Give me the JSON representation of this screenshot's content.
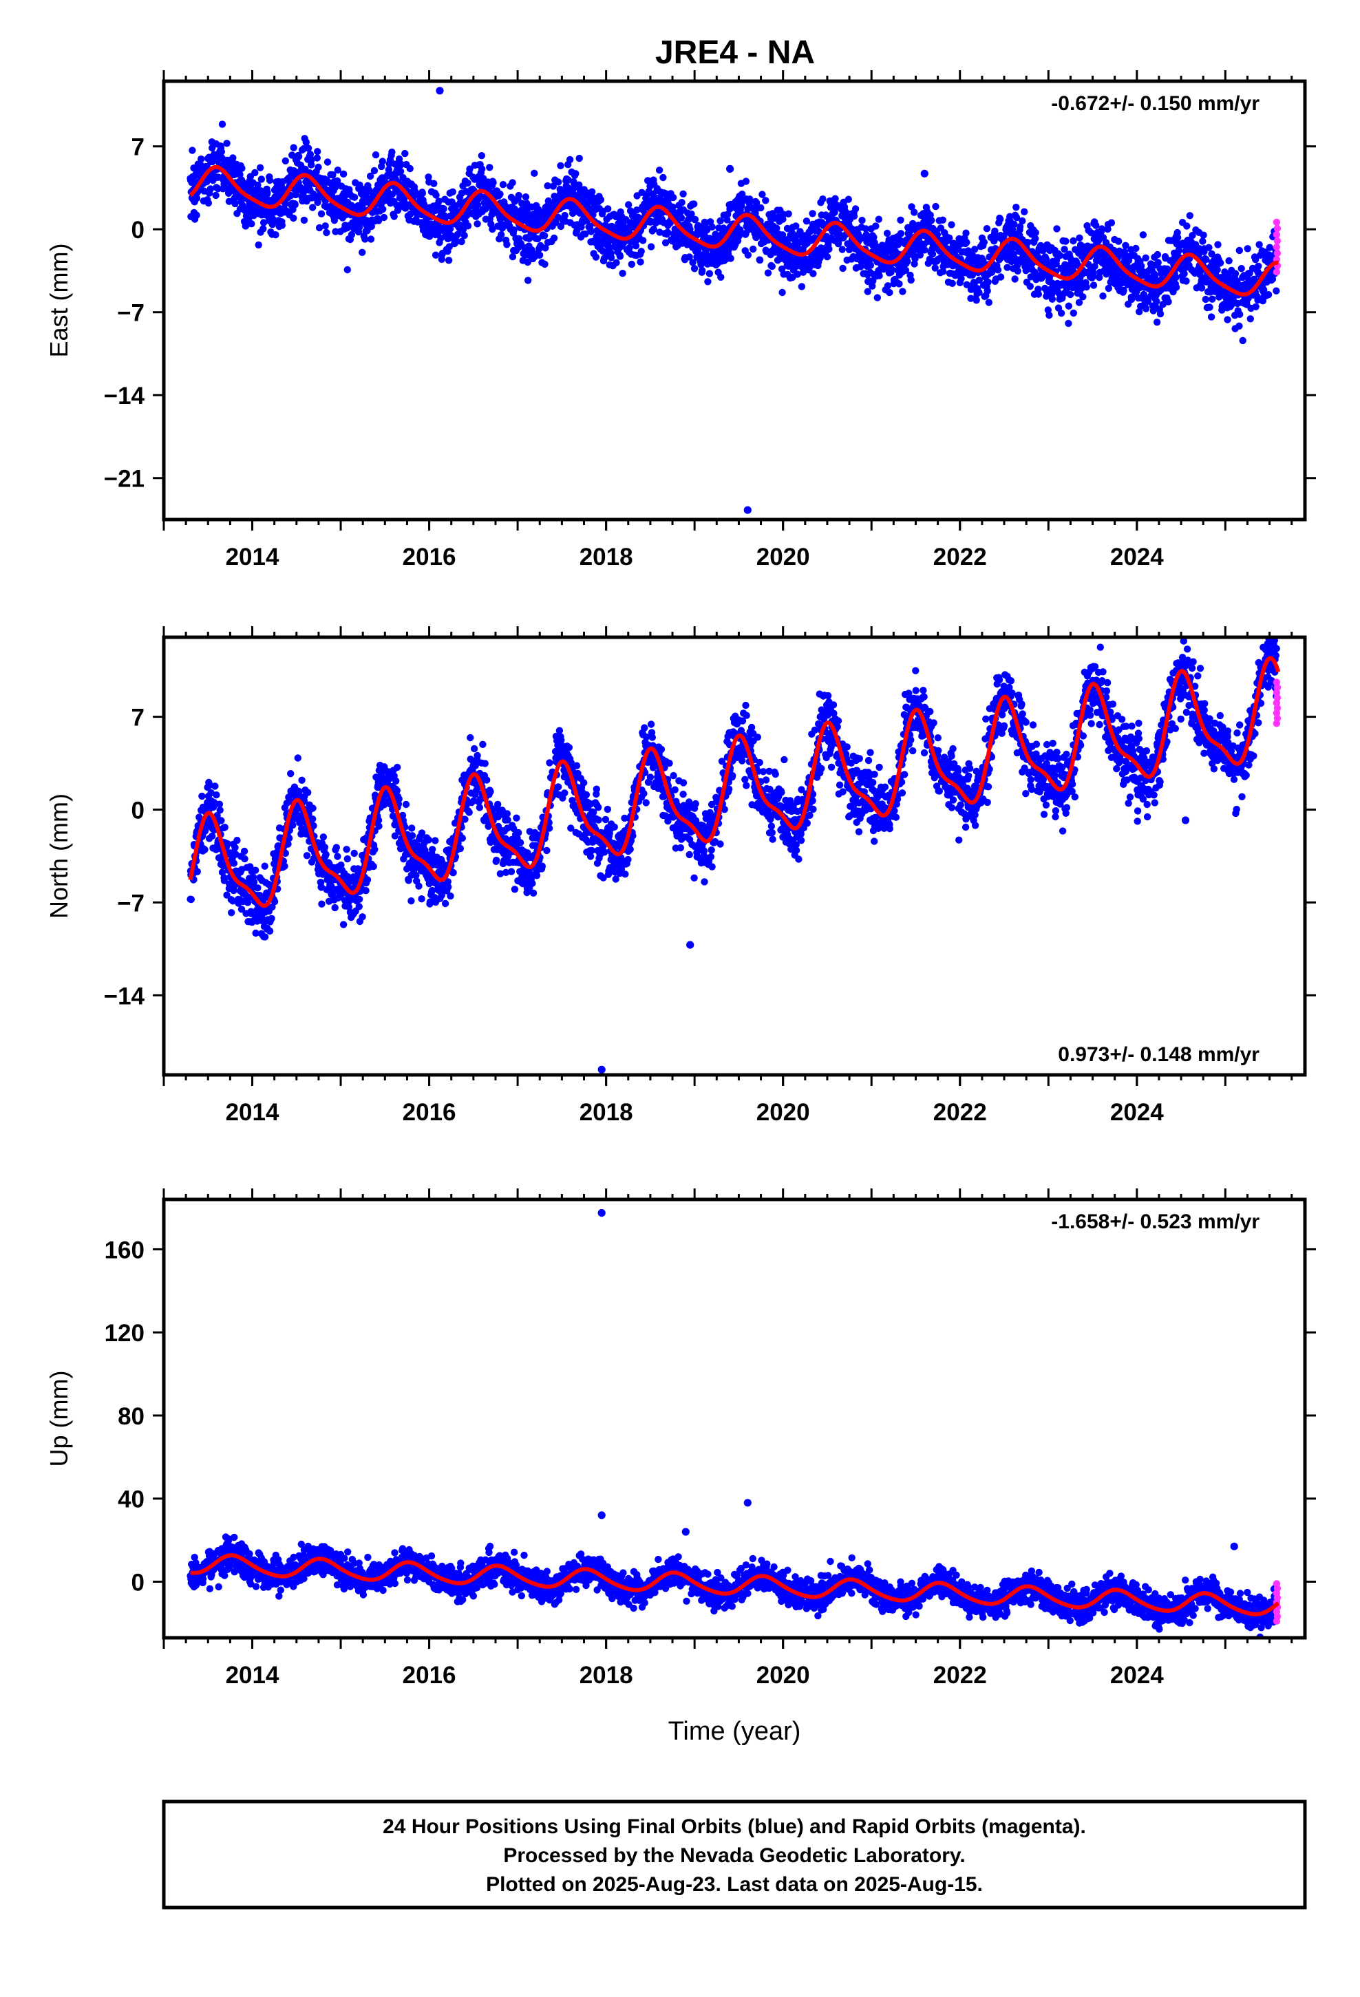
{
  "title": "JRE4 - NA",
  "colors": {
    "final": "#0000ff",
    "rapid": "#ff33ff",
    "model": "#ff0000",
    "frame": "#000000"
  },
  "chart_data": [
    {
      "type": "scatter",
      "component": "east",
      "ylabel": "East (mm)",
      "xlabel": "",
      "rate": "-0.672+/- 0.150 mm/yr",
      "rate_placement": "top-right",
      "xlim": [
        2013.0,
        2025.9
      ],
      "ylim": [
        -24.5,
        12.5
      ],
      "xticks": [
        2014,
        2016,
        2018,
        2020,
        2022,
        2024
      ],
      "yticks": [
        7,
        0,
        -7,
        -14,
        -21
      ],
      "ytick_labels": [
        "7",
        "0",
        "−7",
        "−14",
        "−21"
      ],
      "model": {
        "offset": 3.8,
        "trend": -0.672,
        "annual_amplitude": 1.4,
        "annual_peak_month": 8,
        "semiannual_amplitude": 0.3
      },
      "scatter_sd": 1.3,
      "outliers": [
        [
          2016.12,
          11.7
        ],
        [
          2019.4,
          5.1
        ],
        [
          2019.6,
          -23.7
        ],
        [
          2021.6,
          4.7
        ]
      ],
      "rapid_range": [
        -3.6,
        0.6
      ]
    },
    {
      "type": "scatter",
      "component": "north",
      "ylabel": "North (mm)",
      "xlabel": "",
      "rate": "0.973+/- 0.148 mm/yr",
      "rate_placement": "bottom-right",
      "xlim": [
        2013.0,
        2025.9
      ],
      "ylim": [
        -20.0,
        13.0
      ],
      "xticks": [
        2014,
        2016,
        2018,
        2020,
        2022,
        2024
      ],
      "yticks": [
        7,
        0,
        -7,
        -14
      ],
      "ytick_labels": [
        "7",
        "0",
        "−7",
        "−14"
      ],
      "model": {
        "offset": -4.8,
        "trend": 0.973,
        "annual_amplitude": 3.4,
        "annual_peak_month": 7,
        "semiannual_amplitude": 1.1
      },
      "scatter_sd": 1.2,
      "outliers": [
        [
          2017.95,
          -19.6
        ],
        [
          2018.95,
          -10.2
        ],
        [
          2024.55,
          -0.8
        ]
      ],
      "rapid_range": [
        6.5,
        9.6
      ]
    },
    {
      "type": "scatter",
      "component": "up",
      "ylabel": "Up (mm)",
      "xlabel": "Time (year)",
      "rate": "-1.658+/- 0.523 mm/yr",
      "rate_placement": "top-right",
      "xlim": [
        2013.0,
        2025.9
      ],
      "ylim": [
        -27.0,
        184.0
      ],
      "xticks": [
        2014,
        2016,
        2018,
        2020,
        2022,
        2024
      ],
      "yticks": [
        160,
        120,
        80,
        40,
        0
      ],
      "ytick_labels": [
        "160",
        "120",
        "80",
        "40",
        "0"
      ],
      "model": {
        "offset": 8.5,
        "trend": -1.658,
        "annual_amplitude": 4.5,
        "annual_peak_month": 10,
        "semiannual_amplitude": 0.6
      },
      "scatter_sd": 3.6,
      "outliers": [
        [
          2017.95,
          177.5
        ],
        [
          2017.95,
          32.0
        ],
        [
          2019.6,
          38.0
        ],
        [
          2018.9,
          24.0
        ],
        [
          2025.1,
          17.0
        ]
      ],
      "rapid_range": [
        -19.0,
        -1.0
      ]
    }
  ],
  "footer": {
    "line1": "24 Hour Positions Using Final Orbits (blue) and Rapid Orbits (magenta).",
    "line2": "Processed by the Nevada Geodetic Laboratory.",
    "line3": "Plotted on 2025-Aug-23. Last data on 2025-Aug-15."
  }
}
